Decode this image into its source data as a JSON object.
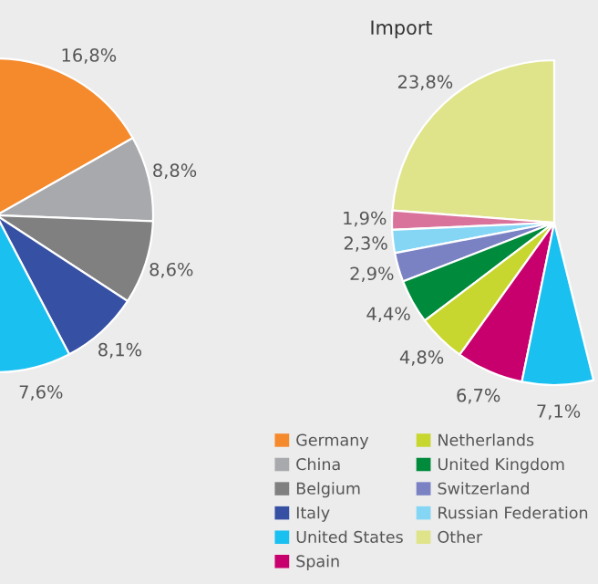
{
  "chart_data": [
    {
      "type": "pie",
      "categories": [
        null,
        null,
        null,
        null,
        null
      ],
      "values": [
        16.8,
        8.8,
        8.6,
        8.1,
        7.6
      ],
      "value_labels": [
        "16,8%",
        "8,8%",
        "8,6%",
        "8,1%",
        "7,6%"
      ],
      "colors": [
        "#f58a2c",
        "#a8a9ad",
        "#808080",
        "#3650a4",
        "#1ac0f0"
      ]
    },
    {
      "type": "pie",
      "title": "Import",
      "legend": "bottom left",
      "categories": [
        "Germany",
        "China",
        "Belgium",
        "Italy",
        "United States",
        "Spain",
        "Netherlands",
        "United Kingdom",
        "Switzerland",
        "Russian Federation",
        null,
        "Other"
      ],
      "values": [
        null,
        null,
        null,
        null,
        7.1,
        6.7,
        4.8,
        4.4,
        2.9,
        2.3,
        1.9,
        23.8
      ],
      "value_labels": [
        null,
        null,
        null,
        null,
        "7,1%",
        "6,7%",
        "4,8%",
        "4,4%",
        "2,9%",
        "2,3%",
        "1,9%",
        "23,8%"
      ],
      "colors": [
        "#f58a2c",
        "#a8a9ad",
        "#808080",
        "#3650a4",
        "#1ac0f0",
        "#c8006e",
        "#c8d630",
        "#008a3c",
        "#7b82c4",
        "#85d5f5",
        "#d9739b",
        "#dfe48a"
      ]
    }
  ]
}
